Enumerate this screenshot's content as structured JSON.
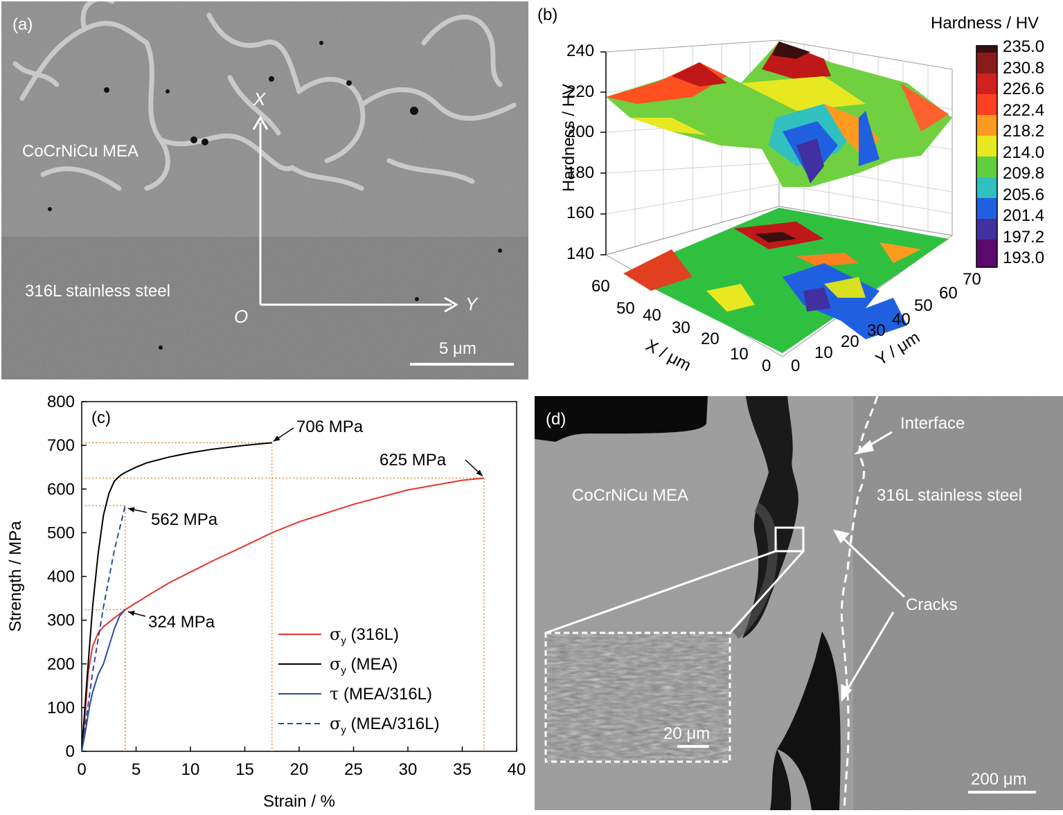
{
  "panel_a": {
    "label": "(a)",
    "mea_label": "CoCrNiCu MEA",
    "steel_label": "316L stainless steel",
    "axis_x": "X",
    "axis_y": "Y",
    "origin": "O",
    "scale_bar": "5 μm"
  },
  "panel_b": {
    "label": "(b)",
    "colorbar_title": "Hardness / HV",
    "colorbar_ticks": [
      "235.0",
      "230.8",
      "226.6",
      "222.4",
      "218.2",
      "214.0",
      "209.8",
      "205.6",
      "201.4",
      "197.2",
      "193.0"
    ],
    "colorbar_colors": [
      "#3a0f0f",
      "#8b1a1a",
      "#d02020",
      "#ff4020",
      "#ff9a20",
      "#e8e820",
      "#60d040",
      "#30c0c0",
      "#2060e0",
      "#4030a0",
      "#5a0a6a"
    ],
    "z_axis_label": "Hardness / HV",
    "z_ticks": [
      "240",
      "220",
      "200",
      "180",
      "160",
      "140"
    ],
    "x_axis_label": "X / μm",
    "x_ticks": [
      "60",
      "50",
      "40",
      "30",
      "20",
      "10",
      "0"
    ],
    "y_axis_label": "Y / μm",
    "y_ticks": [
      "0",
      "10",
      "20",
      "30",
      "40",
      "50",
      "60",
      "70"
    ]
  },
  "panel_c": {
    "label": "(c)",
    "annotations": [
      "706 MPa",
      "625 MPa",
      "562 MPa",
      "324 MPa"
    ],
    "legend": [
      {
        "name": "σy (316L)",
        "sym": "σ",
        "sub": "y",
        "rest": " (316L)",
        "color": "#e8352b",
        "dash": false
      },
      {
        "name": "σy (MEA)",
        "sym": "σ",
        "sub": "y",
        "rest": " (MEA)",
        "color": "#000000",
        "dash": false
      },
      {
        "name": "τ (MEA/316L)",
        "sym": "τ",
        "sub": "",
        "rest": " (MEA/316L)",
        "color": "#2a4aa0",
        "dash": false
      },
      {
        "name": "σy (MEA/316L)",
        "sym": "σ",
        "sub": "y",
        "rest": " (MEA/316L)",
        "color": "#2a4aa0",
        "dash": true
      }
    ],
    "chart_data": {
      "type": "line",
      "xlabel": "Strain / %",
      "ylabel": "Strength / MPa",
      "xlim": [
        0,
        40
      ],
      "ylim": [
        0,
        800
      ],
      "xticks": [
        "0",
        "5",
        "10",
        "15",
        "20",
        "25",
        "30",
        "35",
        "40"
      ],
      "yticks": [
        "0",
        "100",
        "200",
        "300",
        "400",
        "500",
        "600",
        "700",
        "800"
      ],
      "series": [
        {
          "name": "σy (316L)",
          "color": "#e8352b",
          "x": [
            0,
            0.3,
            0.6,
            1.0,
            1.5,
            2.0,
            3.0,
            4.0,
            6,
            8,
            10,
            12,
            15,
            17.5,
            20,
            25,
            30,
            35,
            37
          ],
          "y": [
            0,
            80,
            180,
            240,
            270,
            285,
            305,
            324,
            355,
            385,
            410,
            435,
            470,
            500,
            525,
            565,
            598,
            620,
            625
          ]
        },
        {
          "name": "σy (MEA)",
          "color": "#000000",
          "x": [
            0,
            0.5,
            1.0,
            1.5,
            2.0,
            2.5,
            3.0,
            3.5,
            4,
            5,
            6,
            8,
            10,
            12,
            15,
            17.5
          ],
          "y": [
            0,
            170,
            330,
            450,
            540,
            590,
            618,
            630,
            638,
            650,
            660,
            673,
            683,
            691,
            700,
            706
          ]
        },
        {
          "name": "τ (MEA/316L)",
          "color": "#2a4aa0",
          "x": [
            0,
            0.3,
            0.7,
            1.0,
            1.5,
            2.0,
            2.5,
            3.0,
            3.5,
            4.0
          ],
          "y": [
            0,
            40,
            100,
            135,
            175,
            200,
            240,
            280,
            310,
            324
          ]
        },
        {
          "name": "σy (MEA/316L)",
          "color": "#2a4aa0",
          "dashed": true,
          "x": [
            0,
            1.0,
            2.0,
            3.0,
            4.0
          ],
          "y": [
            0,
            180,
            330,
            460,
            562
          ]
        }
      ],
      "guides": [
        {
          "x": 17.5,
          "y": 706
        },
        {
          "x": 37,
          "y": 625
        },
        {
          "x": 4,
          "y": 562
        },
        {
          "x": 4,
          "y": 324
        }
      ]
    }
  },
  "panel_d": {
    "label": "(d)",
    "interface": "Interface",
    "mea_label": "CoCrNiCu MEA",
    "steel_label": "316L stainless steel",
    "cracks": "Cracks",
    "inset_scale": "20 μm",
    "scale_bar": "200 μm"
  }
}
